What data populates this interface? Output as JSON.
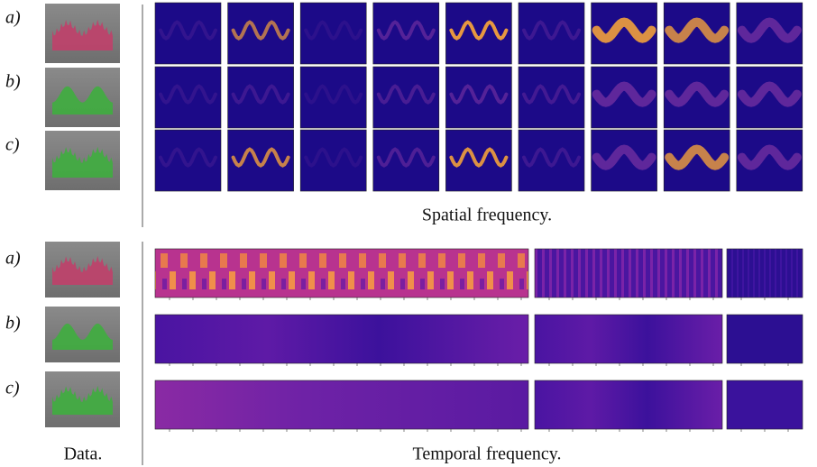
{
  "spatial": {
    "rows": [
      "a)",
      "b)",
      "c)"
    ],
    "caption": "Spatial frequency."
  },
  "temporal": {
    "rows": [
      "a)",
      "b)",
      "c)"
    ],
    "caption": "Temporal frequency."
  },
  "data_caption": "Data."
}
